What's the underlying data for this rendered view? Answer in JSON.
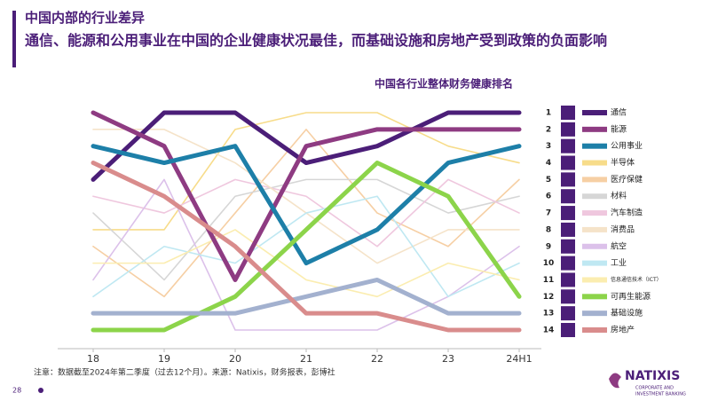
{
  "header": {
    "title": "中国内部的行业差异",
    "subtitle": "通信、能源和公用事业在中国的企业健康状况最佳，而基础设施和房地产受到政策的负面影响"
  },
  "chart_data": {
    "type": "line",
    "title": "中国各行业整体财务健康排名",
    "categories": [
      "18",
      "19",
      "20",
      "21",
      "22",
      "23",
      "24H1"
    ],
    "ylim": [
      14,
      1
    ],
    "yticks": [
      1,
      2,
      3,
      4,
      5,
      6,
      7,
      8,
      9,
      10,
      11,
      12,
      13,
      14
    ],
    "series": [
      {
        "name": "通信",
        "color": "#4b1e78",
        "highlight": true,
        "values": [
          5,
          1,
          1,
          4,
          3,
          1,
          1
        ]
      },
      {
        "name": "能源",
        "color": "#8e3b82",
        "highlight": true,
        "values": [
          1,
          3,
          11,
          3,
          2,
          2,
          2
        ]
      },
      {
        "name": "公用事业",
        "color": "#1d7fa8",
        "highlight": true,
        "values": [
          3,
          4,
          3,
          10,
          8,
          4,
          3
        ]
      },
      {
        "name": "半导体",
        "color": "#f7dc8a",
        "values": [
          8,
          8,
          2,
          1,
          1,
          3,
          4
        ]
      },
      {
        "name": "医疗保健",
        "color": "#f6cfa4",
        "values": [
          9,
          12,
          7,
          2,
          7,
          9,
          5
        ]
      },
      {
        "name": "材料",
        "color": "#d6d6d6",
        "values": [
          7,
          11,
          6,
          5,
          5,
          7,
          6
        ]
      },
      {
        "name": "汽车制造",
        "color": "#efc7de",
        "values": [
          6,
          7,
          5,
          6,
          9,
          5,
          7
        ]
      },
      {
        "name": "消费品",
        "color": "#f5e3c9",
        "values": [
          2,
          2,
          4,
          7,
          10,
          8,
          8
        ]
      },
      {
        "name": "航空",
        "color": "#dcc1ea",
        "values": [
          11,
          5,
          14,
          14,
          14,
          12,
          9
        ]
      },
      {
        "name": "工业",
        "color": "#bfe8f2",
        "values": [
          12,
          9,
          10,
          7,
          6,
          12,
          10
        ]
      },
      {
        "name": "信息通信技术（ICT）",
        "color": "#fbedb0",
        "values": [
          10,
          10,
          8,
          11,
          12,
          10,
          11
        ]
      },
      {
        "name": "可再生能源",
        "color": "#8cd44a",
        "highlight": true,
        "values": [
          14,
          14,
          12,
          8,
          4,
          6,
          12
        ]
      },
      {
        "name": "基础设施",
        "color": "#a3b1cf",
        "highlight": true,
        "values": [
          13,
          13,
          13,
          12,
          11,
          13,
          13
        ]
      },
      {
        "name": "房地产",
        "color": "#d98c8c",
        "highlight": true,
        "values": [
          4,
          6,
          9,
          13,
          13,
          14,
          14
        ]
      }
    ]
  },
  "footer": {
    "note": "注意：数据截至2024年第二季度（过去12个月）。来源：Natixis，财务报表，彭博社",
    "page": "28",
    "logo_name": "NATIXIS",
    "logo_tagline": [
      "CORPORATE AND",
      "INVESTMENT BANKING"
    ]
  }
}
